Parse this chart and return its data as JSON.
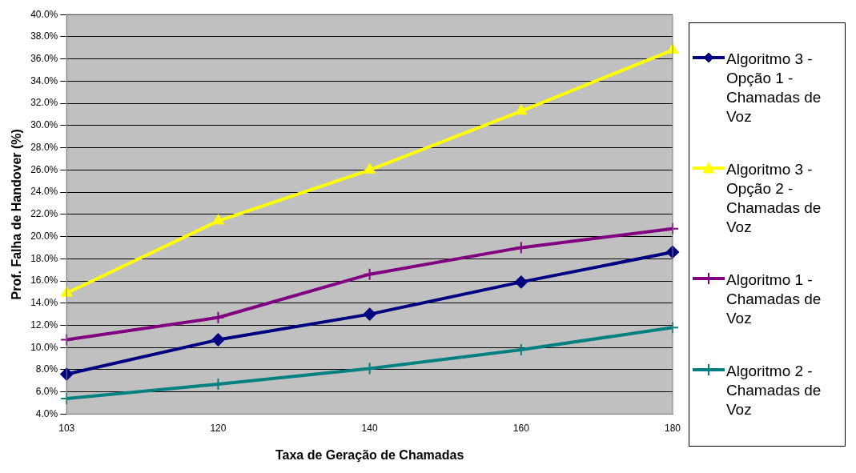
{
  "chart_data": {
    "type": "line",
    "xlabel": "Taxa de Geração de Chamadas",
    "ylabel": "Prof. Falha de Handover (%)",
    "categories": [
      "103",
      "120",
      "140",
      "160",
      "180"
    ],
    "series": [
      {
        "name": "Algoritmo 3 - Opção 1 - Chamadas de Voz",
        "color": "#000080",
        "marker": "diamond",
        "values": [
          7.6,
          10.7,
          13.0,
          15.9,
          18.6
        ]
      },
      {
        "name": "Algoritmo 3 - Opção 2 - Chamadas de Voz",
        "color": "#ffff00",
        "marker": "triangle",
        "values": [
          14.9,
          21.4,
          26.0,
          31.3,
          36.8
        ]
      },
      {
        "name": "Algoritmo 1 - Chamadas de Voz",
        "color": "#800080",
        "marker": "cross",
        "values": [
          10.7,
          12.7,
          16.6,
          19.0,
          20.7
        ]
      },
      {
        "name": "Algoritmo 2 - Chamadas de Voz",
        "color": "#008080",
        "marker": "cross",
        "values": [
          5.4,
          6.7,
          8.1,
          9.8,
          11.8
        ]
      }
    ],
    "ylim": [
      4,
      40
    ],
    "yticks": [
      {
        "value": 4,
        "label": "4.0%"
      },
      {
        "value": 6,
        "label": "6.0%"
      },
      {
        "value": 8,
        "label": "8.0%"
      },
      {
        "value": 10,
        "label": "10.0%"
      },
      {
        "value": 12,
        "label": "12.0%"
      },
      {
        "value": 14,
        "label": "14.0%"
      },
      {
        "value": 16,
        "label": "16.0%"
      },
      {
        "value": 18,
        "label": "18.0%"
      },
      {
        "value": 20,
        "label": "20.0%"
      },
      {
        "value": 22,
        "label": "22.0%"
      },
      {
        "value": 24,
        "label": "24.0%"
      },
      {
        "value": 26,
        "label": "26.0%"
      },
      {
        "value": 28,
        "label": "28.0%"
      },
      {
        "value": 30,
        "label": "30.0%"
      },
      {
        "value": 32,
        "label": "32.0%"
      },
      {
        "value": 34,
        "label": "34.0%"
      },
      {
        "value": 36,
        "label": "36.0%"
      },
      {
        "value": 38,
        "label": "38.0%"
      },
      {
        "value": 40,
        "label": "40.0%"
      }
    ],
    "grid": "y",
    "legend": "right",
    "line_style": "solid"
  }
}
